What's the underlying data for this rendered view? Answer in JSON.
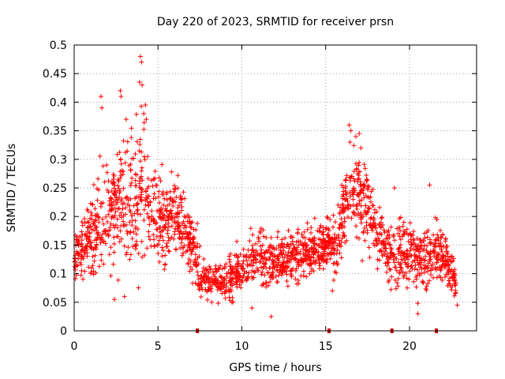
{
  "chart_data": {
    "type": "scatter",
    "title": "Day 220 of 2023, SRMTID for receiver prsn",
    "xlabel": "GPS time / hours",
    "ylabel": "SRMTID / TECUs",
    "xlim": [
      0,
      24
    ],
    "ylim": [
      0,
      0.5
    ],
    "xticks": [
      0,
      5,
      10,
      15,
      20
    ],
    "xtick_labels": [
      "0",
      "5",
      "10",
      "15",
      "20"
    ],
    "yticks": [
      0,
      0.05,
      0.1,
      0.15,
      0.2,
      0.25,
      0.3,
      0.35,
      0.4,
      0.45,
      0.5
    ],
    "ytick_labels": [
      "0",
      "0.05",
      "0.1",
      "0.15",
      "0.2",
      "0.25",
      "0.3",
      "0.35",
      "0.4",
      "0.45",
      "0.5"
    ],
    "grid": true,
    "marker": "+",
    "marker_color": "#ff0000",
    "data_gap_markers_x": [
      7.35,
      15.2,
      18.95,
      21.6
    ],
    "data_gap_color": "#cc0000",
    "envelope": {
      "description": "approximate median trend and spread of the scattered SRMTID values over GPS time",
      "x": [
        0.0,
        0.5,
        1.0,
        1.5,
        2.0,
        2.5,
        3.0,
        3.5,
        4.0,
        4.5,
        5.0,
        5.5,
        6.0,
        6.5,
        7.0,
        7.5,
        8.0,
        8.5,
        9.0,
        9.5,
        10.0,
        10.5,
        11.0,
        11.5,
        12.0,
        12.5,
        13.0,
        13.5,
        14.0,
        14.5,
        15.0,
        15.5,
        16.0,
        16.5,
        17.0,
        17.5,
        18.0,
        18.5,
        19.0,
        19.5,
        20.0,
        20.5,
        21.0,
        21.5,
        22.0,
        22.5,
        22.8
      ],
      "median": [
        0.12,
        0.14,
        0.17,
        0.19,
        0.2,
        0.21,
        0.24,
        0.23,
        0.24,
        0.21,
        0.2,
        0.19,
        0.2,
        0.18,
        0.15,
        0.1,
        0.09,
        0.09,
        0.09,
        0.1,
        0.11,
        0.12,
        0.13,
        0.12,
        0.12,
        0.13,
        0.13,
        0.13,
        0.14,
        0.14,
        0.15,
        0.15,
        0.19,
        0.25,
        0.23,
        0.21,
        0.18,
        0.15,
        0.13,
        0.14,
        0.14,
        0.13,
        0.13,
        0.14,
        0.13,
        0.11,
        0.08
      ],
      "spread": [
        0.03,
        0.04,
        0.05,
        0.06,
        0.07,
        0.07,
        0.08,
        0.08,
        0.09,
        0.06,
        0.06,
        0.05,
        0.05,
        0.04,
        0.04,
        0.03,
        0.02,
        0.02,
        0.03,
        0.03,
        0.03,
        0.03,
        0.03,
        0.04,
        0.03,
        0.03,
        0.03,
        0.03,
        0.03,
        0.03,
        0.03,
        0.04,
        0.05,
        0.05,
        0.05,
        0.04,
        0.04,
        0.03,
        0.04,
        0.04,
        0.04,
        0.04,
        0.04,
        0.04,
        0.03,
        0.03,
        0.02
      ]
    },
    "points_per_hour": 92,
    "highlight_points": [
      {
        "x": 3.95,
        "y": 0.48
      },
      {
        "x": 4.02,
        "y": 0.47
      },
      {
        "x": 3.9,
        "y": 0.435
      },
      {
        "x": 4.05,
        "y": 0.43
      },
      {
        "x": 2.75,
        "y": 0.42
      },
      {
        "x": 2.8,
        "y": 0.41
      },
      {
        "x": 1.6,
        "y": 0.41
      },
      {
        "x": 1.65,
        "y": 0.39
      },
      {
        "x": 4.25,
        "y": 0.395
      },
      {
        "x": 4.15,
        "y": 0.38
      },
      {
        "x": 4.3,
        "y": 0.37
      },
      {
        "x": 3.1,
        "y": 0.37
      },
      {
        "x": 16.4,
        "y": 0.36
      },
      {
        "x": 16.5,
        "y": 0.35
      },
      {
        "x": 17.0,
        "y": 0.345
      },
      {
        "x": 16.8,
        "y": 0.34
      },
      {
        "x": 17.1,
        "y": 0.32
      },
      {
        "x": 16.45,
        "y": 0.33
      },
      {
        "x": 19.1,
        "y": 0.25
      },
      {
        "x": 21.2,
        "y": 0.255
      },
      {
        "x": 11.75,
        "y": 0.025
      },
      {
        "x": 10.6,
        "y": 0.04
      },
      {
        "x": 20.5,
        "y": 0.03
      },
      {
        "x": 22.85,
        "y": 0.045
      },
      {
        "x": 8.2,
        "y": 0.05
      },
      {
        "x": 3.0,
        "y": 0.06
      },
      {
        "x": 2.4,
        "y": 0.055
      },
      {
        "x": 15.4,
        "y": 0.07
      }
    ]
  }
}
